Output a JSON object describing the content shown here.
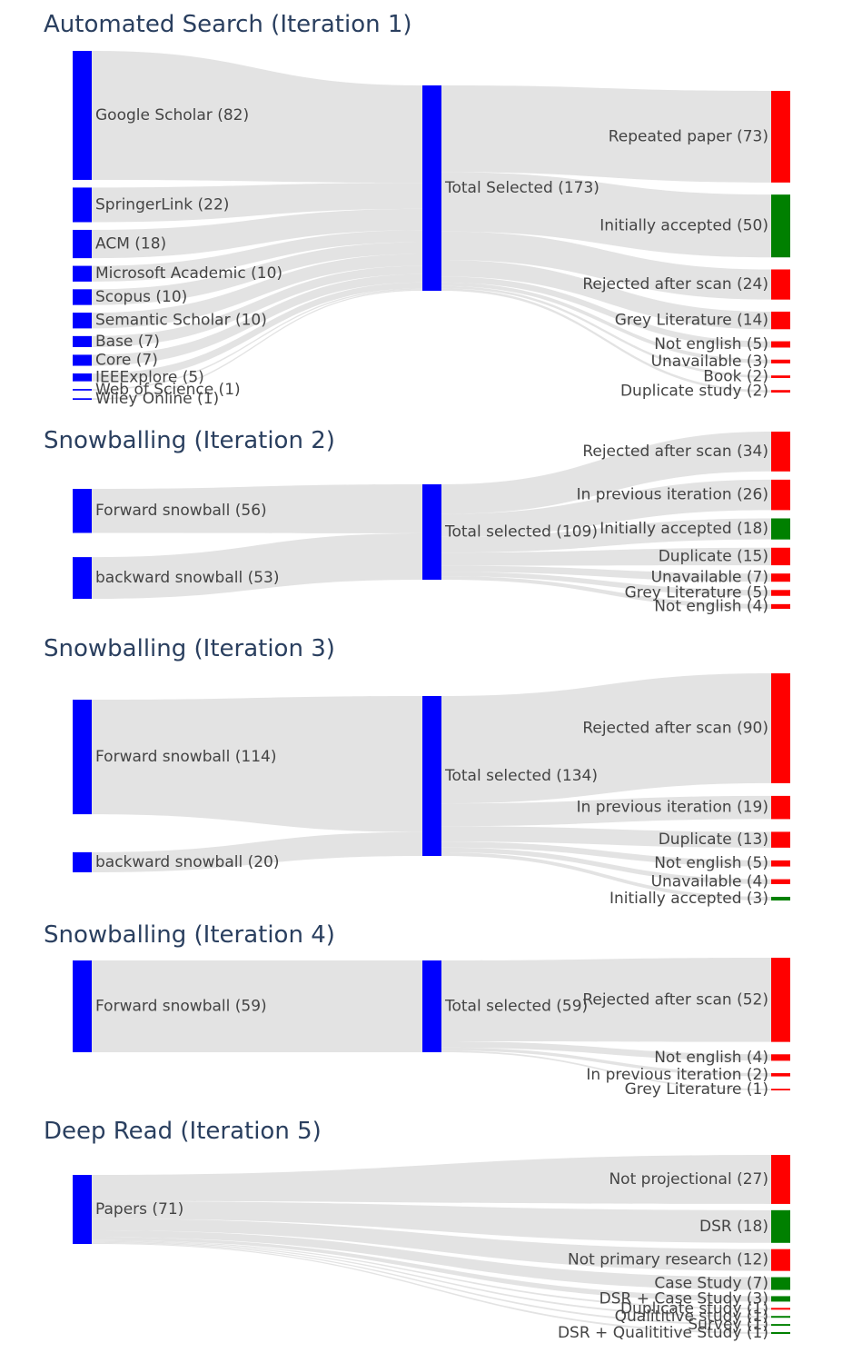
{
  "colors": {
    "source": "#0000ff",
    "rejected": "#ff0000",
    "accepted": "#008000",
    "link": "#e2e2e2",
    "title": "#2a3f5f",
    "label": "#444444"
  },
  "panels": [
    {
      "title": "Automated Search (Iteration 1)",
      "sources": [
        {
          "label": "Google Scholar (82)",
          "value": 82
        },
        {
          "label": "SpringerLink (22)",
          "value": 22
        },
        {
          "label": "ACM (18)",
          "value": 18
        },
        {
          "label": "Microsoft Academic (10)",
          "value": 10
        },
        {
          "label": "Scopus (10)",
          "value": 10
        },
        {
          "label": "Semantic Scholar (10)",
          "value": 10
        },
        {
          "label": "Base (7)",
          "value": 7
        },
        {
          "label": "Core (7)",
          "value": 7
        },
        {
          "label": "IEEExplore (5)",
          "value": 5
        },
        {
          "label": "Web of Science (1)",
          "value": 1
        },
        {
          "label": "Wiley Online (1)",
          "value": 1
        }
      ],
      "middle": {
        "label": "Total Selected (173)",
        "value": 173
      },
      "targets": [
        {
          "label": "Repeated paper (73)",
          "value": 73,
          "status": "rejected"
        },
        {
          "label": "Initially accepted (50)",
          "value": 50,
          "status": "accepted"
        },
        {
          "label": "Rejected after scan (24)",
          "value": 24,
          "status": "rejected"
        },
        {
          "label": "Grey Literature (14)",
          "value": 14,
          "status": "rejected"
        },
        {
          "label": "Not english (5)",
          "value": 5,
          "status": "rejected"
        },
        {
          "label": "Unavailable (3)",
          "value": 3,
          "status": "rejected"
        },
        {
          "label": "Book (2)",
          "value": 2,
          "status": "rejected"
        },
        {
          "label": "Duplicate study (2)",
          "value": 2,
          "status": "rejected"
        }
      ]
    },
    {
      "title": "Snowballing (Iteration 2)",
      "sources": [
        {
          "label": "Forward snowball (56)",
          "value": 56
        },
        {
          "label": "backward snowball (53)",
          "value": 53
        }
      ],
      "middle": {
        "label": "Total selected (109)",
        "value": 109
      },
      "targets": [
        {
          "label": "Rejected after scan (34)",
          "value": 34,
          "status": "rejected"
        },
        {
          "label": "In previous iteration (26)",
          "value": 26,
          "status": "rejected"
        },
        {
          "label": "Initially accepted (18)",
          "value": 18,
          "status": "accepted"
        },
        {
          "label": "Duplicate (15)",
          "value": 15,
          "status": "rejected"
        },
        {
          "label": "Unavailable (7)",
          "value": 7,
          "status": "rejected"
        },
        {
          "label": "Grey Literature (5)",
          "value": 5,
          "status": "rejected"
        },
        {
          "label": "Not english (4)",
          "value": 4,
          "status": "rejected"
        }
      ]
    },
    {
      "title": "Snowballing (Iteration 3)",
      "sources": [
        {
          "label": "Forward snowball (114)",
          "value": 114
        },
        {
          "label": "backward snowball (20)",
          "value": 20
        }
      ],
      "middle": {
        "label": "Total selected (134)",
        "value": 134
      },
      "targets": [
        {
          "label": "Rejected after scan (90)",
          "value": 90,
          "status": "rejected"
        },
        {
          "label": "In previous iteration (19)",
          "value": 19,
          "status": "rejected"
        },
        {
          "label": "Duplicate (13)",
          "value": 13,
          "status": "rejected"
        },
        {
          "label": "Not english (5)",
          "value": 5,
          "status": "rejected"
        },
        {
          "label": "Unavailable (4)",
          "value": 4,
          "status": "rejected"
        },
        {
          "label": "Initially accepted (3)",
          "value": 3,
          "status": "accepted"
        }
      ]
    },
    {
      "title": "Snowballing (Iteration 4)",
      "sources": [
        {
          "label": "Forward snowball (59)",
          "value": 59
        }
      ],
      "middle": {
        "label": "Total selected (59)",
        "value": 59
      },
      "targets": [
        {
          "label": "Rejected after scan (52)",
          "value": 52,
          "status": "rejected"
        },
        {
          "label": "Not english (4)",
          "value": 4,
          "status": "rejected"
        },
        {
          "label": "In previous iteration (2)",
          "value": 2,
          "status": "rejected"
        },
        {
          "label": "Grey Literature (1)",
          "value": 1,
          "status": "rejected"
        }
      ]
    },
    {
      "title": "Deep Read (Iteration 5)",
      "sources": [
        {
          "label": "Papers (71)",
          "value": 71
        }
      ],
      "middle": null,
      "targets": [
        {
          "label": "Not projectional (27)",
          "value": 27,
          "status": "rejected"
        },
        {
          "label": "DSR (18)",
          "value": 18,
          "status": "accepted"
        },
        {
          "label": "Not primary research (12)",
          "value": 12,
          "status": "rejected"
        },
        {
          "label": "Case Study (7)",
          "value": 7,
          "status": "accepted"
        },
        {
          "label": "DSR + Case Study (3)",
          "value": 3,
          "status": "accepted"
        },
        {
          "label": "Duplicate study (1)",
          "value": 1,
          "status": "rejected"
        },
        {
          "label": "Qualititive study (1)",
          "value": 1,
          "status": "accepted"
        },
        {
          "label": "Survey (1)",
          "value": 1,
          "status": "accepted"
        },
        {
          "label": "DSR + Qualititive Study (1)",
          "value": 1,
          "status": "accepted"
        }
      ]
    }
  ]
}
